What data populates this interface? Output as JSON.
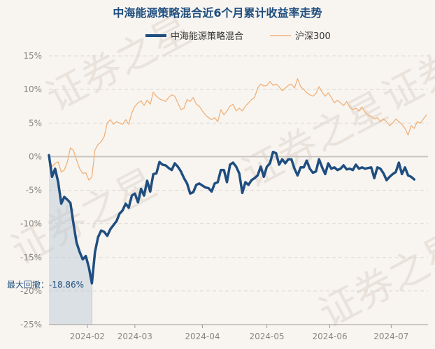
{
  "chart_data": {
    "type": "line",
    "title": "中海能源策略混合近6个月累计收益率走势",
    "series": [
      {
        "name": "中海能源策略混合",
        "color": "#1f4e7f",
        "points": [
          [
            0,
            0.2
          ],
          [
            2,
            -3.0
          ],
          [
            4,
            -1.8
          ],
          [
            6,
            -3.8
          ],
          [
            8,
            -7.0
          ],
          [
            10,
            -6.0
          ],
          [
            12,
            -6.4
          ],
          [
            14,
            -6.9
          ],
          [
            16,
            -10.0
          ],
          [
            18,
            -12.8
          ],
          [
            20,
            -14.2
          ],
          [
            22,
            -15.3
          ],
          [
            24,
            -14.8
          ],
          [
            26,
            -16.5
          ],
          [
            28,
            -18.86
          ],
          [
            30,
            -14.2
          ],
          [
            32,
            -12.0
          ],
          [
            34,
            -11.0
          ],
          [
            36,
            -11.2
          ],
          [
            38,
            -11.8
          ],
          [
            40,
            -10.8
          ],
          [
            42,
            -10.2
          ],
          [
            44,
            -9.6
          ],
          [
            46,
            -8.5
          ],
          [
            48,
            -8.0
          ],
          [
            50,
            -7.0
          ],
          [
            52,
            -7.6
          ],
          [
            54,
            -5.8
          ],
          [
            56,
            -5.5
          ],
          [
            58,
            -6.8
          ],
          [
            60,
            -4.8
          ],
          [
            62,
            -5.8
          ],
          [
            64,
            -3.6
          ],
          [
            66,
            -5.2
          ],
          [
            68,
            -2.6
          ],
          [
            70,
            -2.5
          ],
          [
            72,
            -0.8
          ],
          [
            74,
            -1.2
          ],
          [
            76,
            -1.3
          ],
          [
            78,
            -1.7
          ],
          [
            80,
            -2.0
          ],
          [
            82,
            -1.0
          ],
          [
            84,
            -1.5
          ],
          [
            86,
            -2.2
          ],
          [
            88,
            -3.2
          ],
          [
            90,
            -4.0
          ],
          [
            92,
            -5.5
          ],
          [
            94,
            -5.3
          ],
          [
            96,
            -4.2
          ],
          [
            98,
            -4.0
          ],
          [
            100,
            -4.3
          ],
          [
            102,
            -4.6
          ],
          [
            104,
            -4.7
          ],
          [
            106,
            -5.2
          ],
          [
            108,
            -4.0
          ],
          [
            110,
            -3.8
          ],
          [
            112,
            -2.0
          ],
          [
            114,
            -2.0
          ],
          [
            116,
            -3.8
          ],
          [
            118,
            -1.2
          ],
          [
            120,
            -0.9
          ],
          [
            122,
            -1.5
          ],
          [
            124,
            -2.5
          ],
          [
            126,
            -5.4
          ],
          [
            128,
            -3.8
          ],
          [
            130,
            -4.2
          ],
          [
            132,
            -3.5
          ],
          [
            134,
            -3.2
          ],
          [
            136,
            -2.8
          ],
          [
            138,
            -1.5
          ],
          [
            140,
            -3.0
          ],
          [
            142,
            -1.5
          ],
          [
            144,
            -1.0
          ],
          [
            146,
            0.7
          ],
          [
            148,
            0.5
          ],
          [
            150,
            -1.2
          ],
          [
            152,
            -0.4
          ],
          [
            154,
            -1.0
          ],
          [
            156,
            -0.4
          ],
          [
            158,
            -0.4
          ],
          [
            160,
            -1.8
          ],
          [
            162,
            -2.8
          ],
          [
            164,
            -1.6
          ],
          [
            166,
            -1.6
          ],
          [
            168,
            -0.6
          ],
          [
            170,
            -1.8
          ],
          [
            172,
            -2.4
          ],
          [
            174,
            -2.2
          ],
          [
            176,
            -0.4
          ],
          [
            178,
            -1.6
          ],
          [
            180,
            -2.6
          ],
          [
            182,
            -1.0
          ],
          [
            184,
            -1.8
          ],
          [
            186,
            -1.6
          ],
          [
            188,
            -2.0
          ],
          [
            190,
            -1.8
          ],
          [
            192,
            -1.3
          ],
          [
            194,
            -1.9
          ],
          [
            196,
            -1.8
          ],
          [
            198,
            -2.0
          ],
          [
            200,
            -1.2
          ],
          [
            202,
            -1.8
          ],
          [
            204,
            -1.6
          ],
          [
            206,
            -1.8
          ],
          [
            208,
            -1.7
          ],
          [
            210,
            -1.6
          ],
          [
            212,
            -3.2
          ],
          [
            214,
            -1.6
          ],
          [
            216,
            -1.8
          ],
          [
            218,
            -2.5
          ],
          [
            220,
            -3.5
          ],
          [
            222,
            -3.0
          ],
          [
            224,
            -2.6
          ],
          [
            226,
            -2.3
          ],
          [
            228,
            -0.9
          ],
          [
            230,
            -2.6
          ],
          [
            232,
            -1.6
          ],
          [
            234,
            -2.8
          ],
          [
            236,
            -3.0
          ],
          [
            238,
            -3.4
          ]
        ]
      },
      {
        "name": "沪深300",
        "color": "#f0b27a",
        "points": [
          [
            0,
            -0.3
          ],
          [
            2,
            -1.5
          ],
          [
            4,
            -1.0
          ],
          [
            6,
            -0.8
          ],
          [
            8,
            -2.3
          ],
          [
            10,
            -2.0
          ],
          [
            12,
            -0.8
          ],
          [
            14,
            1.3
          ],
          [
            16,
            0.9
          ],
          [
            18,
            -0.5
          ],
          [
            20,
            -1.8
          ],
          [
            22,
            -2.5
          ],
          [
            24,
            -2.4
          ],
          [
            26,
            -3.5
          ],
          [
            28,
            -3.0
          ],
          [
            30,
            1.0
          ],
          [
            32,
            1.8
          ],
          [
            34,
            2.2
          ],
          [
            36,
            3.0
          ],
          [
            38,
            5.0
          ],
          [
            40,
            5.5
          ],
          [
            42,
            4.8
          ],
          [
            44,
            5.2
          ],
          [
            46,
            5.0
          ],
          [
            48,
            4.8
          ],
          [
            50,
            5.5
          ],
          [
            52,
            4.8
          ],
          [
            54,
            6.5
          ],
          [
            56,
            7.5
          ],
          [
            58,
            8.0
          ],
          [
            60,
            8.3
          ],
          [
            62,
            7.6
          ],
          [
            64,
            8.4
          ],
          [
            66,
            7.8
          ],
          [
            68,
            9.6
          ],
          [
            70,
            9.0
          ],
          [
            72,
            8.6
          ],
          [
            74,
            8.4
          ],
          [
            76,
            8.2
          ],
          [
            78,
            8.8
          ],
          [
            80,
            9.2
          ],
          [
            82,
            9.0
          ],
          [
            84,
            8.0
          ],
          [
            86,
            7.0
          ],
          [
            88,
            7.2
          ],
          [
            90,
            8.5
          ],
          [
            92,
            8.2
          ],
          [
            94,
            8.8
          ],
          [
            96,
            7.8
          ],
          [
            98,
            7.5
          ],
          [
            100,
            6.8
          ],
          [
            102,
            6.2
          ],
          [
            104,
            5.8
          ],
          [
            106,
            5.5
          ],
          [
            108,
            5.8
          ],
          [
            110,
            5.2
          ],
          [
            112,
            7.0
          ],
          [
            114,
            6.2
          ],
          [
            116,
            6.8
          ],
          [
            118,
            7.5
          ],
          [
            120,
            7.8
          ],
          [
            122,
            6.8
          ],
          [
            124,
            7.2
          ],
          [
            126,
            6.8
          ],
          [
            128,
            7.5
          ],
          [
            130,
            8.0
          ],
          [
            132,
            8.5
          ],
          [
            134,
            8.8
          ],
          [
            136,
            10.2
          ],
          [
            138,
            10.8
          ],
          [
            140,
            10.5
          ],
          [
            142,
            10.6
          ],
          [
            144,
            11.2
          ],
          [
            146,
            10.6
          ],
          [
            148,
            10.8
          ],
          [
            150,
            10.4
          ],
          [
            152,
            9.8
          ],
          [
            154,
            10.2
          ],
          [
            156,
            10.6
          ],
          [
            158,
            10.8
          ],
          [
            160,
            10.2
          ],
          [
            162,
            11.6
          ],
          [
            164,
            10.4
          ],
          [
            166,
            10.0
          ],
          [
            168,
            9.5
          ],
          [
            170,
            9.2
          ],
          [
            172,
            9.0
          ],
          [
            174,
            9.4
          ],
          [
            176,
            10.4
          ],
          [
            178,
            9.6
          ],
          [
            180,
            9.0
          ],
          [
            182,
            9.5
          ],
          [
            184,
            8.8
          ],
          [
            186,
            8.0
          ],
          [
            188,
            8.4
          ],
          [
            190,
            8.0
          ],
          [
            192,
            7.6
          ],
          [
            194,
            8.2
          ],
          [
            196,
            7.4
          ],
          [
            198,
            7.0
          ],
          [
            200,
            7.2
          ],
          [
            202,
            6.8
          ],
          [
            204,
            7.4
          ],
          [
            206,
            6.6
          ],
          [
            208,
            6.2
          ],
          [
            210,
            6.0
          ],
          [
            212,
            5.6
          ],
          [
            214,
            5.8
          ],
          [
            216,
            5.2
          ],
          [
            218,
            5.6
          ],
          [
            220,
            5.2
          ],
          [
            222,
            4.6
          ],
          [
            224,
            5.0
          ],
          [
            226,
            5.6
          ],
          [
            228,
            5.2
          ],
          [
            230,
            4.8
          ],
          [
            232,
            4.2
          ],
          [
            234,
            3.2
          ],
          [
            236,
            4.6
          ],
          [
            238,
            4.2
          ],
          [
            240,
            5.2
          ],
          [
            242,
            5.0
          ],
          [
            244,
            5.6
          ],
          [
            246,
            6.2
          ]
        ]
      }
    ],
    "x_range": [
      0,
      247
    ],
    "ylim": [
      -25,
      15
    ],
    "yticks": [
      15,
      10,
      5,
      0,
      -5,
      -10,
      -15,
      -20,
      -25
    ],
    "ytick_labels": [
      "15%",
      "10%",
      "5%",
      "0%",
      "-5%",
      "-10%",
      "-15%",
      "-20%",
      "-25%"
    ],
    "xtick_labels": [
      {
        "label": "2024-02",
        "x": 25
      },
      {
        "label": "2024-03",
        "x": 56
      },
      {
        "label": "2024-04",
        "x": 100
      },
      {
        "label": "2024-05",
        "x": 142
      },
      {
        "label": "2024-06",
        "x": 183
      },
      {
        "label": "2024-07",
        "x": 223
      }
    ],
    "max_drawdown": {
      "label": "最大回撤：-18.86%",
      "start_x": 0,
      "end_x": 28,
      "value": -18.86,
      "fill_color": "#b8c8d8"
    },
    "watermark": "证券之星",
    "grid": true,
    "legend_position": "top-center"
  }
}
